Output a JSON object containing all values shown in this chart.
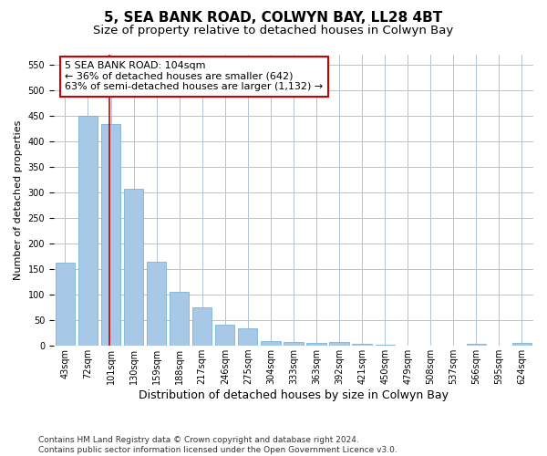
{
  "title": "5, SEA BANK ROAD, COLWYN BAY, LL28 4BT",
  "subtitle": "Size of property relative to detached houses in Colwyn Bay",
  "xlabel": "Distribution of detached houses by size in Colwyn Bay",
  "ylabel": "Number of detached properties",
  "categories": [
    "43sqm",
    "72sqm",
    "101sqm",
    "130sqm",
    "159sqm",
    "188sqm",
    "217sqm",
    "246sqm",
    "275sqm",
    "304sqm",
    "333sqm",
    "363sqm",
    "392sqm",
    "421sqm",
    "450sqm",
    "479sqm",
    "508sqm",
    "537sqm",
    "566sqm",
    "595sqm",
    "624sqm"
  ],
  "values": [
    163,
    450,
    435,
    307,
    165,
    105,
    75,
    42,
    35,
    10,
    8,
    5,
    8,
    3,
    2,
    1,
    1,
    1,
    4,
    1,
    5
  ],
  "bar_color": "#a8c8e8",
  "bar_edge_color": "#6aaad4",
  "grid_color": "#b0c4de",
  "background_color": "#ffffff",
  "annotation_box_color": "#cc0000",
  "annotation_text": "5 SEA BANK ROAD: 104sqm\n← 36% of detached houses are smaller (642)\n63% of semi-detached houses are larger (1,132) →",
  "property_line_x": 1.93,
  "ylim": [
    0,
    570
  ],
  "yticks": [
    0,
    50,
    100,
    150,
    200,
    250,
    300,
    350,
    400,
    450,
    500,
    550
  ],
  "footer": "Contains HM Land Registry data © Crown copyright and database right 2024.\nContains public sector information licensed under the Open Government Licence v3.0.",
  "title_fontsize": 11,
  "subtitle_fontsize": 9.5,
  "xlabel_fontsize": 9,
  "ylabel_fontsize": 8,
  "tick_fontsize": 7,
  "annotation_fontsize": 8,
  "footer_fontsize": 6.5
}
